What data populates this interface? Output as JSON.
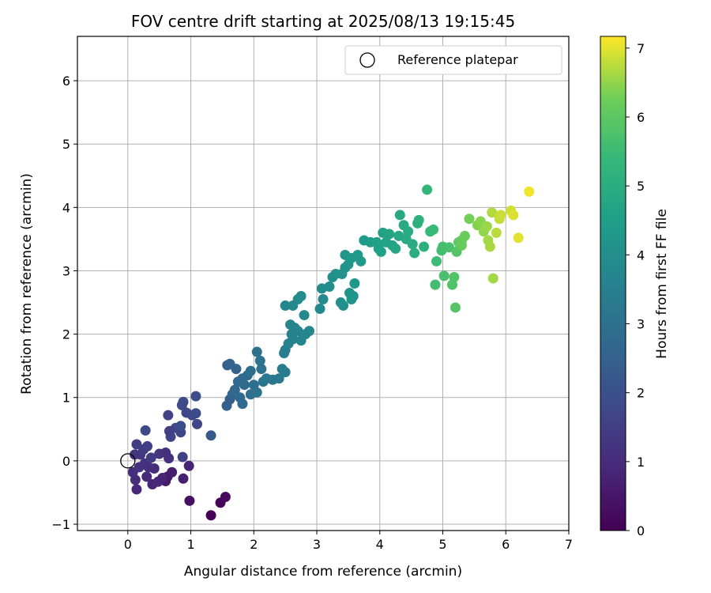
{
  "chart_data": {
    "type": "scatter",
    "title": "FOV centre drift starting at 2025/08/13 19:15:45",
    "xlabel": "Angular distance from reference (arcmin)",
    "ylabel": "Rotation from reference (arcmin)",
    "xlim": [
      -0.8,
      7.0
    ],
    "ylim": [
      -1.1,
      6.7
    ],
    "xticks": [
      "0",
      "1",
      "2",
      "3",
      "4",
      "5",
      "6",
      "7"
    ],
    "yticks": [
      "−1",
      "0",
      "1",
      "2",
      "3",
      "4",
      "5",
      "6"
    ],
    "grid": true,
    "legend": {
      "position": "top-right",
      "entries": [
        "Reference platepar"
      ]
    },
    "reference_point": {
      "x": 0,
      "y": 0,
      "marker": "hollow-circle",
      "label": "Reference platepar"
    },
    "colorbar": {
      "label": "Hours from first FF file",
      "colormap": "viridis",
      "range": [
        0,
        7.17
      ],
      "ticks": [
        "0",
        "1",
        "2",
        "3",
        "4",
        "5",
        "6",
        "7"
      ]
    },
    "points": [
      [
        1.32,
        -0.86,
        0.05
      ],
      [
        1.47,
        -0.66,
        0.1
      ],
      [
        1.55,
        -0.57,
        0.15
      ],
      [
        0.98,
        -0.63,
        0.35
      ],
      [
        0.6,
        -0.32,
        0.6
      ],
      [
        0.63,
        -0.25,
        0.55
      ],
      [
        0.88,
        -0.28,
        0.7
      ],
      [
        0.97,
        -0.08,
        0.8
      ],
      [
        0.7,
        -0.18,
        0.65
      ],
      [
        0.14,
        -0.45,
        0.9
      ],
      [
        0.12,
        -0.3,
        1.0
      ],
      [
        0.08,
        -0.18,
        1.05
      ],
      [
        0.3,
        -0.25,
        0.95
      ],
      [
        0.39,
        -0.37,
        0.85
      ],
      [
        0.48,
        -0.33,
        0.9
      ],
      [
        0.55,
        -0.27,
        0.8
      ],
      [
        0.27,
        -0.04,
        1.2
      ],
      [
        0.37,
        0.05,
        1.4
      ],
      [
        0.2,
        0.1,
        1.3
      ],
      [
        0.25,
        0.18,
        1.35
      ],
      [
        0.11,
        0.1,
        1.25
      ],
      [
        0.14,
        0.26,
        1.45
      ],
      [
        0.31,
        0.23,
        1.5
      ],
      [
        0.5,
        0.11,
        1.3
      ],
      [
        0.6,
        0.13,
        1.1
      ],
      [
        0.65,
        0.04,
        1.15
      ],
      [
        0.42,
        -0.12,
        1.0
      ],
      [
        0.33,
        -0.1,
        1.1
      ],
      [
        0.18,
        -0.1,
        1.15
      ],
      [
        0.28,
        0.48,
        1.8
      ],
      [
        0.87,
        0.06,
        1.6
      ],
      [
        0.84,
        0.45,
        1.7
      ],
      [
        0.68,
        0.38,
        1.65
      ],
      [
        0.76,
        0.52,
        1.75
      ],
      [
        0.84,
        0.55,
        1.9
      ],
      [
        0.66,
        0.47,
        1.55
      ],
      [
        0.64,
        0.72,
        1.6
      ],
      [
        0.93,
        0.76,
        1.75
      ],
      [
        1.02,
        0.72,
        1.8
      ],
      [
        1.08,
        0.75,
        1.85
      ],
      [
        1.1,
        0.58,
        1.7
      ],
      [
        0.86,
        0.88,
        1.8
      ],
      [
        0.88,
        0.93,
        1.85
      ],
      [
        1.08,
        1.02,
        1.9
      ],
      [
        1.32,
        0.4,
        2.2
      ],
      [
        1.57,
        0.87,
        2.5
      ],
      [
        1.62,
        0.97,
        2.4
      ],
      [
        1.66,
        1.05,
        2.6
      ],
      [
        1.7,
        1.12,
        2.65
      ],
      [
        1.58,
        1.51,
        2.4
      ],
      [
        1.62,
        1.53,
        2.5
      ],
      [
        1.72,
        1.45,
        2.55
      ],
      [
        1.75,
        1.25,
        2.7
      ],
      [
        1.82,
        1.3,
        2.75
      ],
      [
        1.85,
        1.2,
        2.8
      ],
      [
        1.9,
        1.35,
        2.85
      ],
      [
        1.95,
        1.42,
        2.9
      ],
      [
        1.95,
        1.05,
        2.95
      ],
      [
        1.78,
        1.0,
        2.7
      ],
      [
        1.82,
        0.9,
        2.75
      ],
      [
        2.0,
        1.2,
        2.9
      ],
      [
        2.05,
        1.72,
        3.0
      ],
      [
        2.1,
        1.58,
        3.1
      ],
      [
        2.12,
        1.45,
        3.05
      ],
      [
        2.05,
        1.08,
        3.1
      ],
      [
        2.15,
        1.25,
        3.15
      ],
      [
        2.2,
        1.3,
        3.2
      ],
      [
        2.3,
        1.28,
        3.25
      ],
      [
        2.4,
        1.3,
        3.3
      ],
      [
        2.45,
        1.45,
        3.3
      ],
      [
        2.5,
        1.4,
        3.35
      ],
      [
        2.48,
        1.7,
        3.45
      ],
      [
        2.5,
        1.75,
        3.4
      ],
      [
        2.55,
        1.85,
        3.5
      ],
      [
        2.62,
        1.92,
        3.55
      ],
      [
        2.6,
        2.0,
        3.6
      ],
      [
        2.7,
        2.05,
        3.6
      ],
      [
        2.75,
        1.9,
        3.65
      ],
      [
        2.82,
        2.0,
        3.75
      ],
      [
        2.88,
        2.05,
        3.7
      ],
      [
        2.58,
        2.15,
        3.7
      ],
      [
        2.65,
        2.1,
        3.65
      ],
      [
        2.8,
        2.3,
        3.8
      ],
      [
        2.5,
        2.45,
        3.75
      ],
      [
        2.62,
        2.45,
        3.8
      ],
      [
        2.7,
        2.55,
        3.85
      ],
      [
        2.75,
        2.6,
        3.9
      ],
      [
        3.05,
        2.4,
        3.8
      ],
      [
        3.1,
        2.55,
        3.85
      ],
      [
        3.08,
        2.72,
        3.9
      ],
      [
        3.2,
        2.75,
        3.95
      ],
      [
        3.25,
        2.9,
        4.0
      ],
      [
        3.3,
        2.95,
        4.05
      ],
      [
        3.38,
        2.5,
        4.0
      ],
      [
        3.42,
        2.45,
        4.05
      ],
      [
        3.4,
        2.95,
        4.1
      ],
      [
        3.45,
        3.05,
        4.15
      ],
      [
        3.5,
        3.1,
        4.2
      ],
      [
        3.52,
        2.65,
        4.15
      ],
      [
        3.55,
        2.55,
        4.2
      ],
      [
        3.6,
        2.8,
        4.25
      ],
      [
        3.45,
        3.25,
        4.25
      ],
      [
        3.55,
        3.2,
        4.3
      ],
      [
        3.65,
        3.25,
        4.35
      ],
      [
        3.7,
        3.15,
        4.3
      ],
      [
        3.58,
        2.6,
        4.2
      ],
      [
        3.75,
        3.48,
        4.4
      ],
      [
        3.85,
        3.45,
        4.45
      ],
      [
        3.98,
        3.35,
        4.5
      ],
      [
        3.95,
        3.45,
        4.55
      ],
      [
        4.02,
        3.3,
        4.55
      ],
      [
        4.05,
        3.6,
        4.6
      ],
      [
        4.1,
        3.45,
        4.65
      ],
      [
        4.15,
        3.58,
        4.7
      ],
      [
        4.2,
        3.4,
        4.7
      ],
      [
        4.25,
        3.35,
        4.75
      ],
      [
        4.3,
        3.55,
        4.8
      ],
      [
        4.32,
        3.88,
        4.85
      ],
      [
        4.38,
        3.72,
        4.9
      ],
      [
        4.45,
        3.62,
        4.95
      ],
      [
        4.42,
        3.5,
        4.9
      ],
      [
        4.52,
        3.42,
        4.95
      ],
      [
        4.55,
        3.28,
        5.0
      ],
      [
        4.6,
        3.75,
        5.05
      ],
      [
        4.62,
        3.8,
        5.1
      ],
      [
        4.7,
        3.38,
        5.1
      ],
      [
        4.75,
        4.28,
        5.3
      ],
      [
        4.8,
        3.62,
        5.4
      ],
      [
        4.85,
        3.65,
        5.45
      ],
      [
        4.9,
        3.15,
        5.5
      ],
      [
        4.88,
        2.78,
        5.6
      ],
      [
        4.98,
        3.32,
        5.6
      ],
      [
        5.0,
        3.38,
        5.65
      ],
      [
        5.02,
        2.92,
        5.7
      ],
      [
        5.1,
        3.37,
        5.7
      ],
      [
        5.15,
        2.78,
        5.8
      ],
      [
        5.18,
        2.9,
        5.85
      ],
      [
        5.2,
        2.42,
        5.9
      ],
      [
        5.22,
        3.3,
        5.9
      ],
      [
        5.25,
        3.45,
        6.0
      ],
      [
        5.3,
        3.48,
        6.1
      ],
      [
        5.3,
        3.4,
        6.15
      ],
      [
        5.35,
        3.55,
        6.2
      ],
      [
        5.42,
        3.82,
        6.3
      ],
      [
        5.55,
        3.72,
        6.4
      ],
      [
        5.6,
        3.78,
        6.45
      ],
      [
        5.65,
        3.62,
        6.5
      ],
      [
        5.7,
        3.7,
        6.55
      ],
      [
        5.72,
        3.48,
        6.6
      ],
      [
        5.75,
        3.38,
        6.65
      ],
      [
        5.78,
        3.92,
        6.7
      ],
      [
        5.8,
        2.88,
        6.6
      ],
      [
        5.85,
        3.6,
        6.75
      ],
      [
        5.9,
        3.82,
        6.8
      ],
      [
        5.92,
        3.88,
        6.85
      ],
      [
        6.08,
        3.95,
        6.9
      ],
      [
        6.12,
        3.88,
        6.95
      ],
      [
        6.2,
        3.52,
        7.0
      ],
      [
        6.37,
        4.25,
        7.1
      ]
    ]
  }
}
